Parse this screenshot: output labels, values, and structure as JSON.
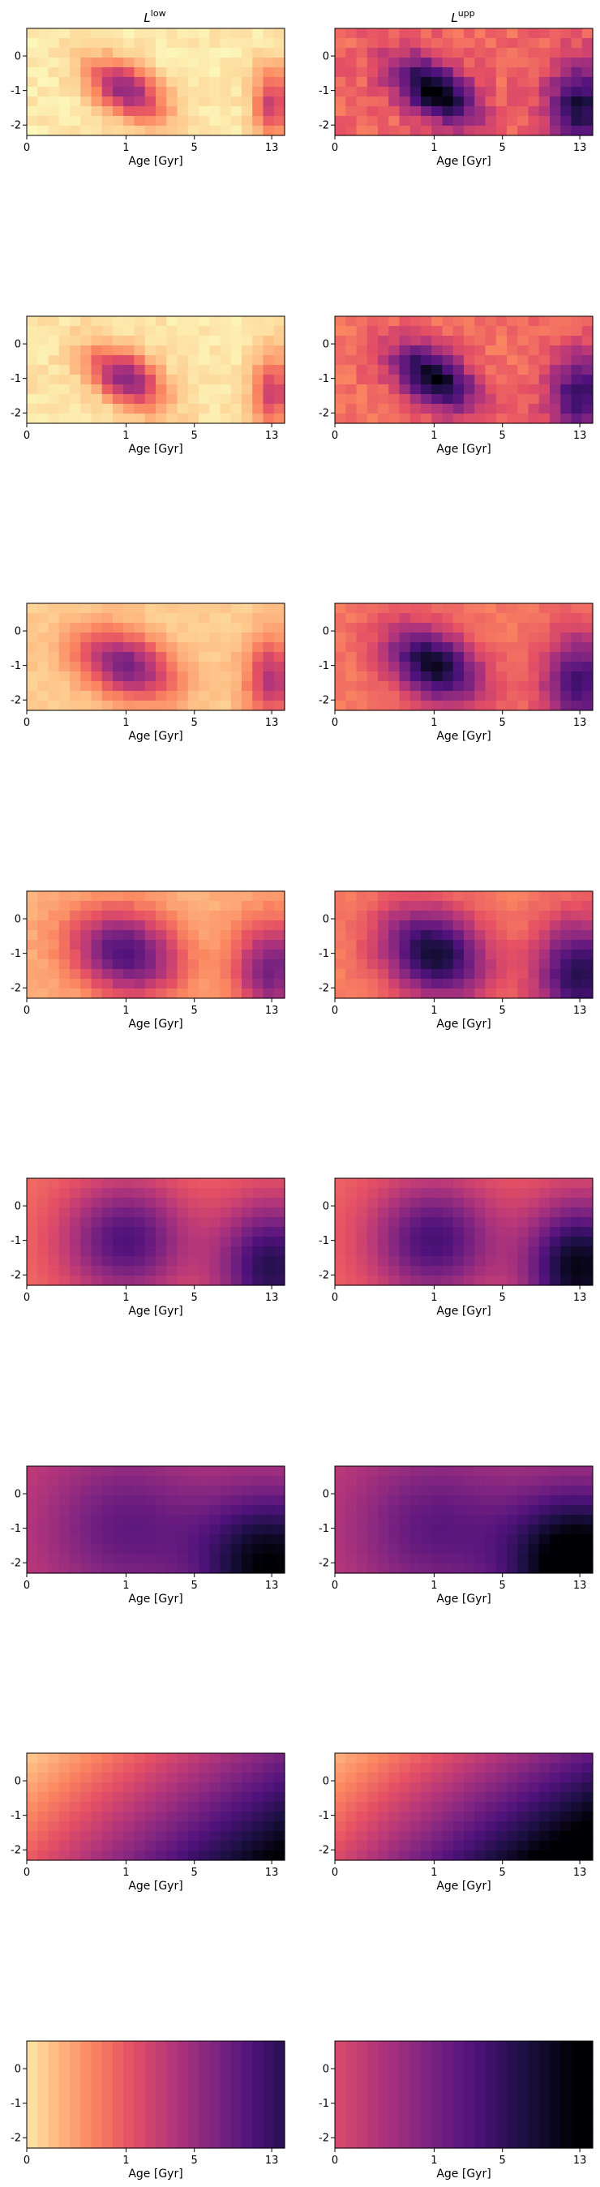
{
  "figure": {
    "column_titles": [
      {
        "base": "L",
        "sup": "low"
      },
      {
        "base": "L",
        "sup": "upp"
      }
    ]
  },
  "chart_data": {
    "type": "heatmap",
    "colormap": "magma_r",
    "rows": 8,
    "cols": 2,
    "xlabel": "Age [Gyr]",
    "ylabel": "",
    "x_ticks": [
      "0",
      "1",
      "5",
      "13"
    ],
    "y_ticks": [
      "0",
      "-1",
      "-2"
    ],
    "grid": false,
    "legend": "none",
    "panels": [
      {
        "column": "low",
        "row": 1,
        "blobs": [
          {
            "age": 1.0,
            "met": -1.0,
            "amp": 0.55,
            "sa": 0.09,
            "sm": 0.35,
            "tilt": 0.25
          },
          {
            "age": 13.0,
            "met": -1.4,
            "amp": 0.4,
            "sa": 0.05,
            "sm": 0.45,
            "tilt": 0
          }
        ],
        "base": 0.04,
        "noise": 0.03
      },
      {
        "column": "upp",
        "row": 1,
        "blobs": [
          {
            "age": 1.0,
            "met": -1.0,
            "amp": 0.7,
            "sa": 0.1,
            "sm": 0.4,
            "tilt": 0.25
          },
          {
            "age": 13.0,
            "met": -1.5,
            "amp": 0.55,
            "sa": 0.09,
            "sm": 0.55,
            "tilt": 0
          }
        ],
        "base": 0.32,
        "noise": 0.06
      },
      {
        "column": "low",
        "row": 2,
        "blobs": [
          {
            "age": 1.0,
            "met": -1.0,
            "amp": 0.55,
            "sa": 0.09,
            "sm": 0.35,
            "tilt": 0.25
          },
          {
            "age": 13.0,
            "met": -1.4,
            "amp": 0.4,
            "sa": 0.05,
            "sm": 0.45,
            "tilt": 0
          }
        ],
        "base": 0.05,
        "noise": 0.03
      },
      {
        "column": "upp",
        "row": 2,
        "blobs": [
          {
            "age": 1.0,
            "met": -1.0,
            "amp": 0.68,
            "sa": 0.1,
            "sm": 0.4,
            "tilt": 0.25
          },
          {
            "age": 13.0,
            "met": -1.5,
            "amp": 0.5,
            "sa": 0.09,
            "sm": 0.55,
            "tilt": 0
          }
        ],
        "base": 0.3,
        "noise": 0.05
      },
      {
        "column": "low",
        "row": 3,
        "blobs": [
          {
            "age": 1.0,
            "met": -1.0,
            "amp": 0.55,
            "sa": 0.12,
            "sm": 0.4,
            "tilt": 0.2
          },
          {
            "age": 13.0,
            "met": -1.4,
            "amp": 0.4,
            "sa": 0.07,
            "sm": 0.5,
            "tilt": 0
          }
        ],
        "base": 0.1,
        "noise": 0.02
      },
      {
        "column": "upp",
        "row": 3,
        "blobs": [
          {
            "age": 1.0,
            "met": -1.0,
            "amp": 0.65,
            "sa": 0.12,
            "sm": 0.45,
            "tilt": 0.2
          },
          {
            "age": 13.0,
            "met": -1.5,
            "amp": 0.5,
            "sa": 0.1,
            "sm": 0.6,
            "tilt": 0
          }
        ],
        "base": 0.28,
        "noise": 0.03
      },
      {
        "column": "low",
        "row": 4,
        "blobs": [
          {
            "age": 1.0,
            "met": -1.0,
            "amp": 0.6,
            "sa": 0.14,
            "sm": 0.5,
            "tilt": 0.1
          },
          {
            "age": 13.0,
            "met": -1.5,
            "amp": 0.5,
            "sa": 0.1,
            "sm": 0.6,
            "tilt": 0
          }
        ],
        "base": 0.16,
        "noise": 0.02
      },
      {
        "column": "upp",
        "row": 4,
        "blobs": [
          {
            "age": 1.0,
            "met": -1.0,
            "amp": 0.65,
            "sa": 0.14,
            "sm": 0.55,
            "tilt": 0.1
          },
          {
            "age": 13.0,
            "met": -1.6,
            "amp": 0.6,
            "sa": 0.12,
            "sm": 0.65,
            "tilt": 0
          }
        ],
        "base": 0.26,
        "noise": 0.02
      },
      {
        "column": "low",
        "row": 5,
        "blobs": [
          {
            "age": 1.0,
            "met": -1.0,
            "amp": 0.45,
            "sa": 0.17,
            "sm": 0.7,
            "tilt": 0
          },
          {
            "age": 13.0,
            "met": -1.8,
            "amp": 0.55,
            "sa": 0.15,
            "sm": 0.8,
            "tilt": 0
          }
        ],
        "base": 0.3,
        "noise": 0.0
      },
      {
        "column": "upp",
        "row": 5,
        "blobs": [
          {
            "age": 1.0,
            "met": -1.0,
            "amp": 0.45,
            "sa": 0.17,
            "sm": 0.7,
            "tilt": 0
          },
          {
            "age": 13.0,
            "met": -1.8,
            "amp": 0.65,
            "sa": 0.15,
            "sm": 0.8,
            "tilt": 0
          }
        ],
        "base": 0.32,
        "noise": 0.0
      },
      {
        "column": "low",
        "row": 6,
        "blobs": [
          {
            "age": 1.0,
            "met": -1.0,
            "amp": 0.25,
            "sa": 0.22,
            "sm": 0.9,
            "tilt": 0
          },
          {
            "age": 13.0,
            "met": -2.1,
            "amp": 0.55,
            "sa": 0.2,
            "sm": 0.9,
            "tilt": 0
          }
        ],
        "base": 0.45,
        "noise": 0.0
      },
      {
        "column": "upp",
        "row": 6,
        "blobs": [
          {
            "age": 1.0,
            "met": -1.0,
            "amp": 0.25,
            "sa": 0.22,
            "sm": 0.9,
            "tilt": 0
          },
          {
            "age": 13.0,
            "met": -2.1,
            "amp": 0.65,
            "sa": 0.2,
            "sm": 0.9,
            "tilt": 0
          }
        ],
        "base": 0.46,
        "noise": 0.0
      },
      {
        "column": "low",
        "row": 7,
        "gradient": {
          "base": 0.1,
          "x": 0.55,
          "y": 0.25,
          "corner": 0.15
        }
      },
      {
        "column": "upp",
        "row": 7,
        "gradient": {
          "base": 0.15,
          "x": 0.55,
          "y": 0.25,
          "corner": 0.25
        }
      },
      {
        "column": "low",
        "row": 8,
        "gradient": {
          "base": 0.05,
          "x": 0.8,
          "y": 0.0,
          "corner": 0.0
        }
      },
      {
        "column": "upp",
        "row": 8,
        "gradient": {
          "base": 0.4,
          "x": 0.65,
          "y": 0.0,
          "corner": 0.0
        }
      }
    ]
  }
}
